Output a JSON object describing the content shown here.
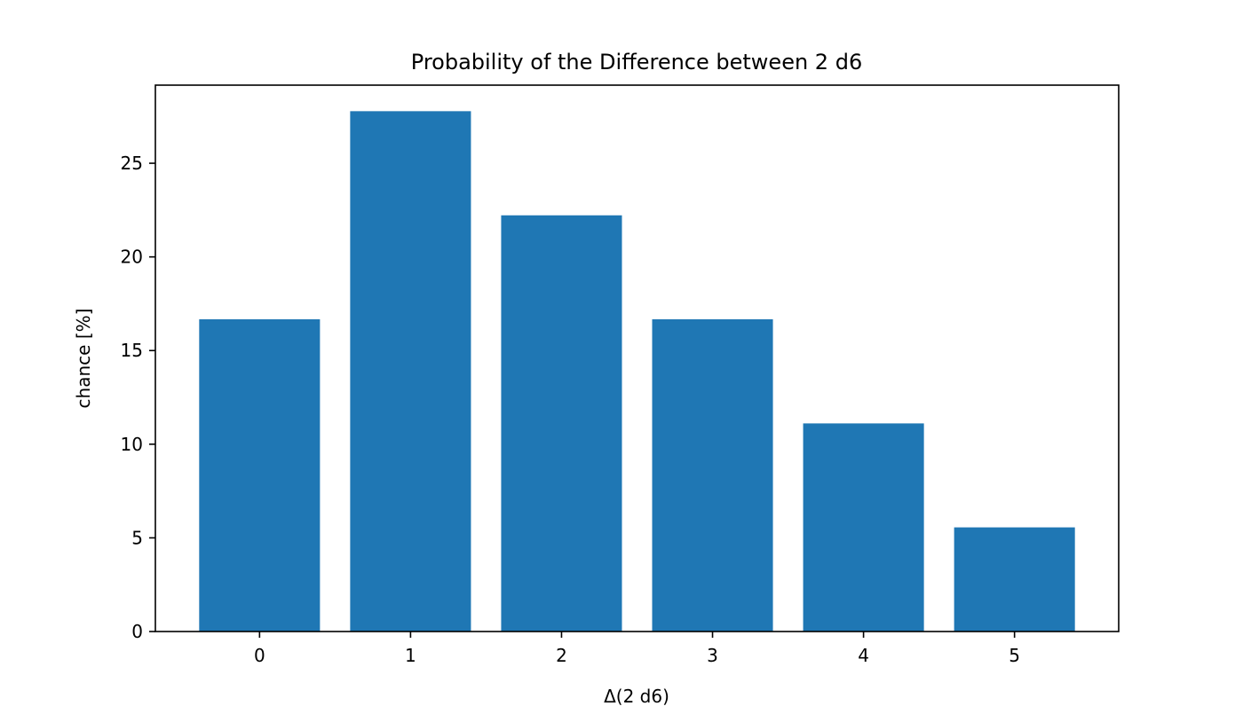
{
  "chart_data": {
    "type": "bar",
    "title": "Probability of the Difference between 2 d6",
    "xlabel": "Δ(2 d6)",
    "ylabel": "chance [%]",
    "categories": [
      "0",
      "1",
      "2",
      "3",
      "4",
      "5"
    ],
    "values": [
      16.67,
      27.78,
      22.22,
      16.67,
      11.11,
      5.56
    ],
    "ylim": [
      0,
      29.17
    ],
    "yticks": [
      0,
      5,
      10,
      15,
      20,
      25
    ],
    "bar_color": "#1f77b4",
    "grid": false,
    "legend": "none"
  }
}
